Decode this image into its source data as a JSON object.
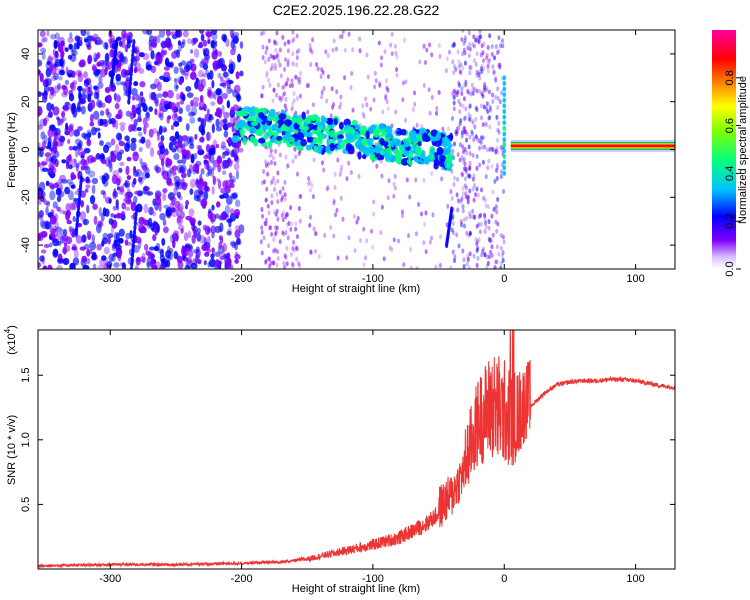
{
  "title": "C2E2.2025.196.22.28.G22",
  "chart_data": [
    {
      "type": "heatmap",
      "xlabel": "Height of straight line (km)",
      "ylabel": "Frequency (Hz)",
      "xlim": [
        -355,
        130
      ],
      "ylim": [
        -50,
        50
      ],
      "xticks": [
        -300,
        -200,
        -100,
        0,
        100
      ],
      "yticks": [
        -40,
        -20,
        0,
        20,
        40
      ],
      "colorbar": {
        "label": "Normalized spectral amplitude",
        "range": [
          0,
          1
        ],
        "ticks": [
          0.0,
          0.2,
          0.4,
          0.6,
          0.8
        ],
        "colormap": [
          "#ffffff",
          "#8000ff",
          "#0000ff",
          "#00c0ff",
          "#00ff80",
          "#80ff00",
          "#ffff00",
          "#ff8000",
          "#ff0000",
          "#ff00a0"
        ]
      },
      "features": [
        {
          "name": "tone",
          "x_range": [
            5,
            130
          ],
          "frequency": 1.5,
          "amplitude": 0.95
        },
        {
          "name": "spike",
          "x": 0,
          "frequency_range": [
            -10,
            30
          ],
          "amplitude": 0.35
        },
        {
          "name": "drifting-feature",
          "x_range": [
            -205,
            -40
          ],
          "frequency_start": 11,
          "frequency_end": -1,
          "amplitude": 0.45
        }
      ]
    },
    {
      "type": "line",
      "xlabel": "Height of straight line (km)",
      "ylabel": "SNR (10 * v/v)",
      "yscale_label": "(x10",
      "yscale_exponent": "4",
      "xlim": [
        -355,
        130
      ],
      "ylim": [
        0,
        1.85
      ],
      "xticks": [
        -300,
        -200,
        -100,
        0,
        100
      ],
      "yticks": [
        0.5,
        1.0,
        1.5
      ],
      "ytick_labels": [
        "0.5",
        "1.0",
        "1.5"
      ],
      "color": "#ee3333",
      "x": [
        -355,
        -300,
        -250,
        -200,
        -170,
        -150,
        -120,
        -100,
        -80,
        -60,
        -50,
        -40,
        -30,
        -25,
        -20,
        -15,
        -10,
        -5,
        0,
        5,
        10,
        15,
        20,
        30,
        40,
        50,
        60,
        70,
        80,
        90,
        100,
        110,
        120,
        130
      ],
      "y": [
        0.02,
        0.03,
        0.03,
        0.04,
        0.05,
        0.07,
        0.13,
        0.17,
        0.22,
        0.32,
        0.4,
        0.5,
        0.7,
        0.85,
        1.0,
        1.05,
        1.1,
        1.05,
        1.05,
        1.0,
        1.05,
        1.15,
        1.25,
        1.35,
        1.42,
        1.44,
        1.45,
        1.45,
        1.46,
        1.46,
        1.45,
        1.43,
        1.41,
        1.4
      ]
    }
  ]
}
